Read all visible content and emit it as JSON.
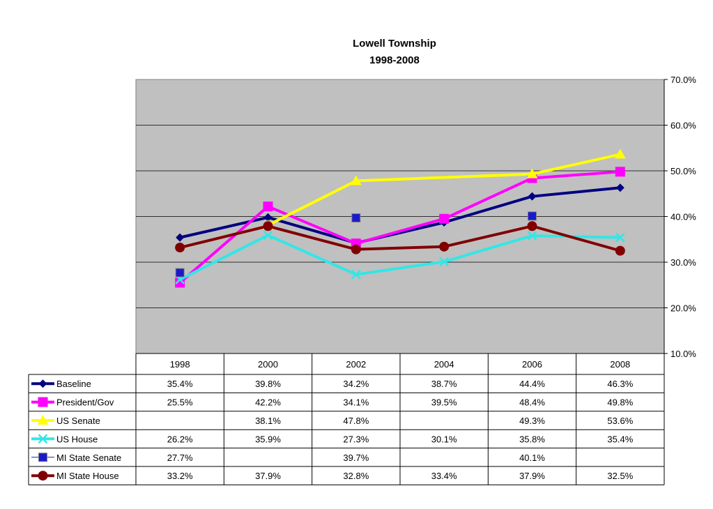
{
  "chart_data": {
    "type": "line",
    "title": "Lowell Township",
    "subtitle": "1998-2008",
    "categories": [
      "1998",
      "2000",
      "2002",
      "2004",
      "2006",
      "2008"
    ],
    "yticks": [
      "10.0%",
      "20.0%",
      "30.0%",
      "40.0%",
      "50.0%",
      "60.0%",
      "70.0%"
    ],
    "ylim": [
      10,
      70
    ],
    "grid": true,
    "legend": "table-below",
    "series": [
      {
        "name": "Baseline",
        "color": "#000080",
        "marker": "diamond",
        "values": [
          35.4,
          39.8,
          34.2,
          38.7,
          44.4,
          46.3
        ],
        "labels": [
          "35.4%",
          "39.8%",
          "34.2%",
          "38.7%",
          "44.4%",
          "46.3%"
        ]
      },
      {
        "name": "President/Gov",
        "color": "#ff00ff",
        "marker": "square",
        "values": [
          25.5,
          42.2,
          34.1,
          39.5,
          48.4,
          49.8
        ],
        "labels": [
          "25.5%",
          "42.2%",
          "34.1%",
          "39.5%",
          "48.4%",
          "49.8%"
        ]
      },
      {
        "name": "US Senate",
        "color": "#ffff00",
        "marker": "triangle",
        "values": [
          null,
          38.1,
          47.8,
          null,
          49.3,
          53.6
        ],
        "labels": [
          "",
          "38.1%",
          "47.8%",
          "",
          "49.3%",
          "53.6%"
        ]
      },
      {
        "name": "US House",
        "color": "#33e6e6",
        "marker": "x",
        "values": [
          26.2,
          35.9,
          27.3,
          30.1,
          35.8,
          35.4
        ],
        "labels": [
          "26.2%",
          "35.9%",
          "27.3%",
          "30.1%",
          "35.8%",
          "35.4%"
        ]
      },
      {
        "name": "MI State Senate",
        "color": "#1a1acc",
        "marker": "bigsquare",
        "line": false,
        "values": [
          27.7,
          null,
          39.7,
          null,
          40.1,
          null
        ],
        "labels": [
          "27.7%",
          "",
          "39.7%",
          "",
          "40.1%",
          ""
        ]
      },
      {
        "name": "MI State House",
        "color": "#800000",
        "marker": "circle",
        "values": [
          33.2,
          37.9,
          32.8,
          33.4,
          37.9,
          32.5
        ],
        "labels": [
          "33.2%",
          "37.9%",
          "32.8%",
          "33.4%",
          "37.9%",
          "32.5%"
        ]
      }
    ]
  }
}
